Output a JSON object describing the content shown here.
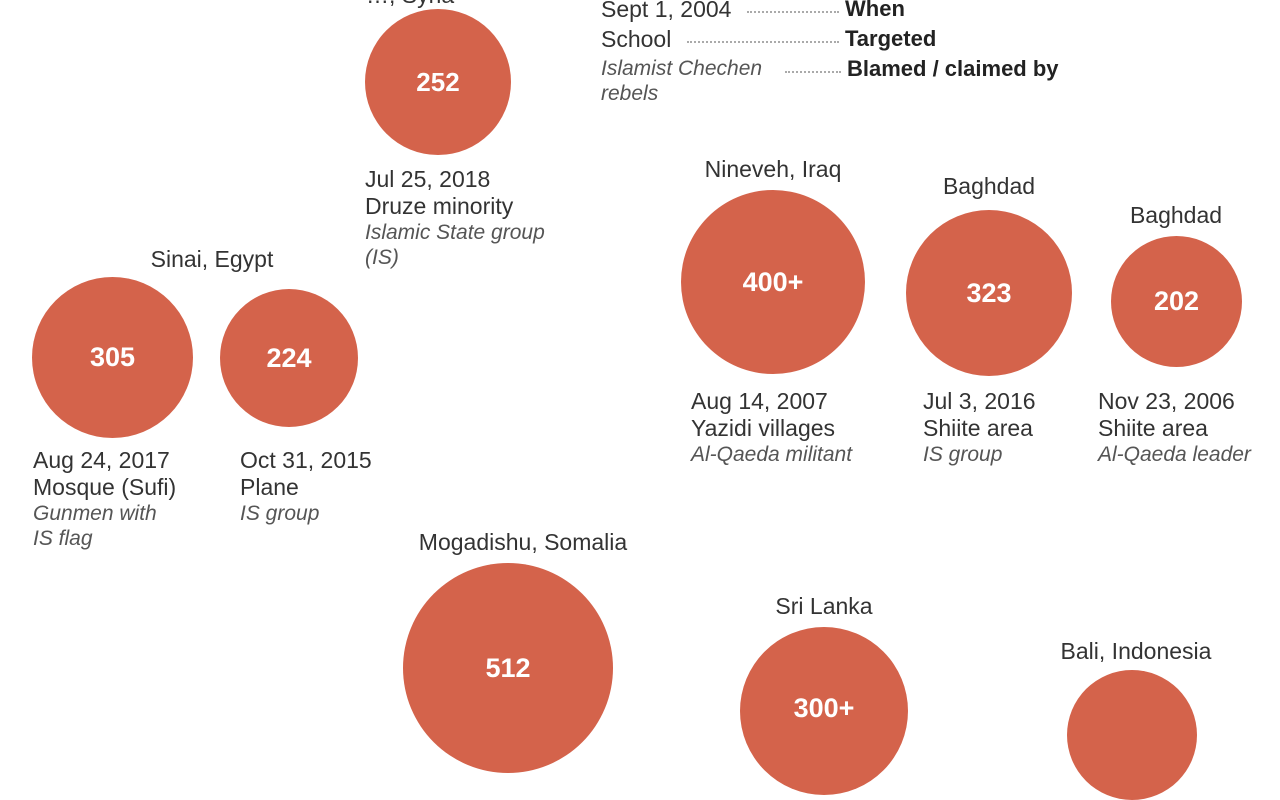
{
  "colors": {
    "bubble": "#d4634b",
    "text": "#333333",
    "italic": "#555555"
  },
  "top_cut_label": "…, Syria",
  "legend": {
    "rows": [
      {
        "value": "Sept 1, 2004",
        "key": "When"
      },
      {
        "value": "School",
        "key": "Targeted"
      },
      {
        "value": "Islamist Chechen rebels",
        "key": "Blamed / claimed by"
      }
    ]
  },
  "events": [
    {
      "location": "",
      "value": "252",
      "date": "Jul 25, 2018",
      "target": "Druze minority",
      "blamed": "Islamic State group (IS)"
    },
    {
      "location": "Sinai, Egypt",
      "value": "305",
      "date": "Aug 24, 2017",
      "target": "Mosque (Sufi)",
      "blamed": "Gunmen with IS flag"
    },
    {
      "location": "",
      "value": "224",
      "date": "Oct 31, 2015",
      "target": "Plane",
      "blamed": "IS group"
    },
    {
      "location": "Nineveh, Iraq",
      "value": "400+",
      "date": "Aug 14, 2007",
      "target": "Yazidi villages",
      "blamed": "Al-Qaeda militant"
    },
    {
      "location": "Baghdad",
      "value": "323",
      "date": "Jul 3, 2016",
      "target": "Shiite area",
      "blamed": "IS group"
    },
    {
      "location": "Baghdad",
      "value": "202",
      "date": "Nov 23, 2006",
      "target": "Shiite area",
      "blamed": "Al-Qaeda leader"
    },
    {
      "location": "Mogadishu, Somalia",
      "value": "512",
      "date": "",
      "target": "",
      "blamed": ""
    },
    {
      "location": "Sri Lanka",
      "value": "300+",
      "date": "",
      "target": "",
      "blamed": ""
    },
    {
      "location": "Bali, Indonesia",
      "value": "",
      "date": "",
      "target": "",
      "blamed": ""
    }
  ]
}
